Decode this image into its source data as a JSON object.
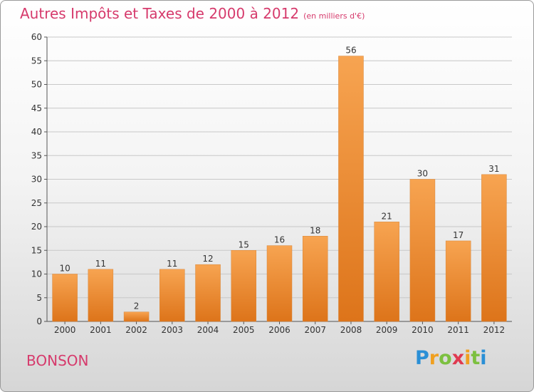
{
  "header": {
    "title": "Autres Impôts et Taxes de 2000 à 2012",
    "unit": "(en milliers d'€)"
  },
  "footer": {
    "commune": "BONSON",
    "logo": [
      "P",
      "r",
      "o",
      "x",
      "i",
      "t",
      "i"
    ],
    "logo_colors": [
      "#2a8fd6",
      "#f0a020",
      "#7cc040",
      "#e03a50",
      "#f0a020",
      "#7cc040",
      "#2a8fd6"
    ]
  },
  "chart_data": {
    "type": "bar",
    "title": "Autres Impôts et Taxes de 2000 à 2012",
    "subtitle": "(en milliers d'€)",
    "categories": [
      "2000",
      "2001",
      "2002",
      "2003",
      "2004",
      "2005",
      "2006",
      "2007",
      "2008",
      "2009",
      "2010",
      "2011",
      "2012"
    ],
    "values": [
      10,
      11,
      2,
      11,
      12,
      15,
      16,
      18,
      56,
      21,
      30,
      17,
      31
    ],
    "ylim": [
      0,
      60
    ],
    "yticks": [
      0,
      5,
      10,
      15,
      20,
      25,
      30,
      35,
      40,
      45,
      50,
      55,
      60
    ],
    "grid": true,
    "bar_color": "#f0943a",
    "legend": "none"
  }
}
